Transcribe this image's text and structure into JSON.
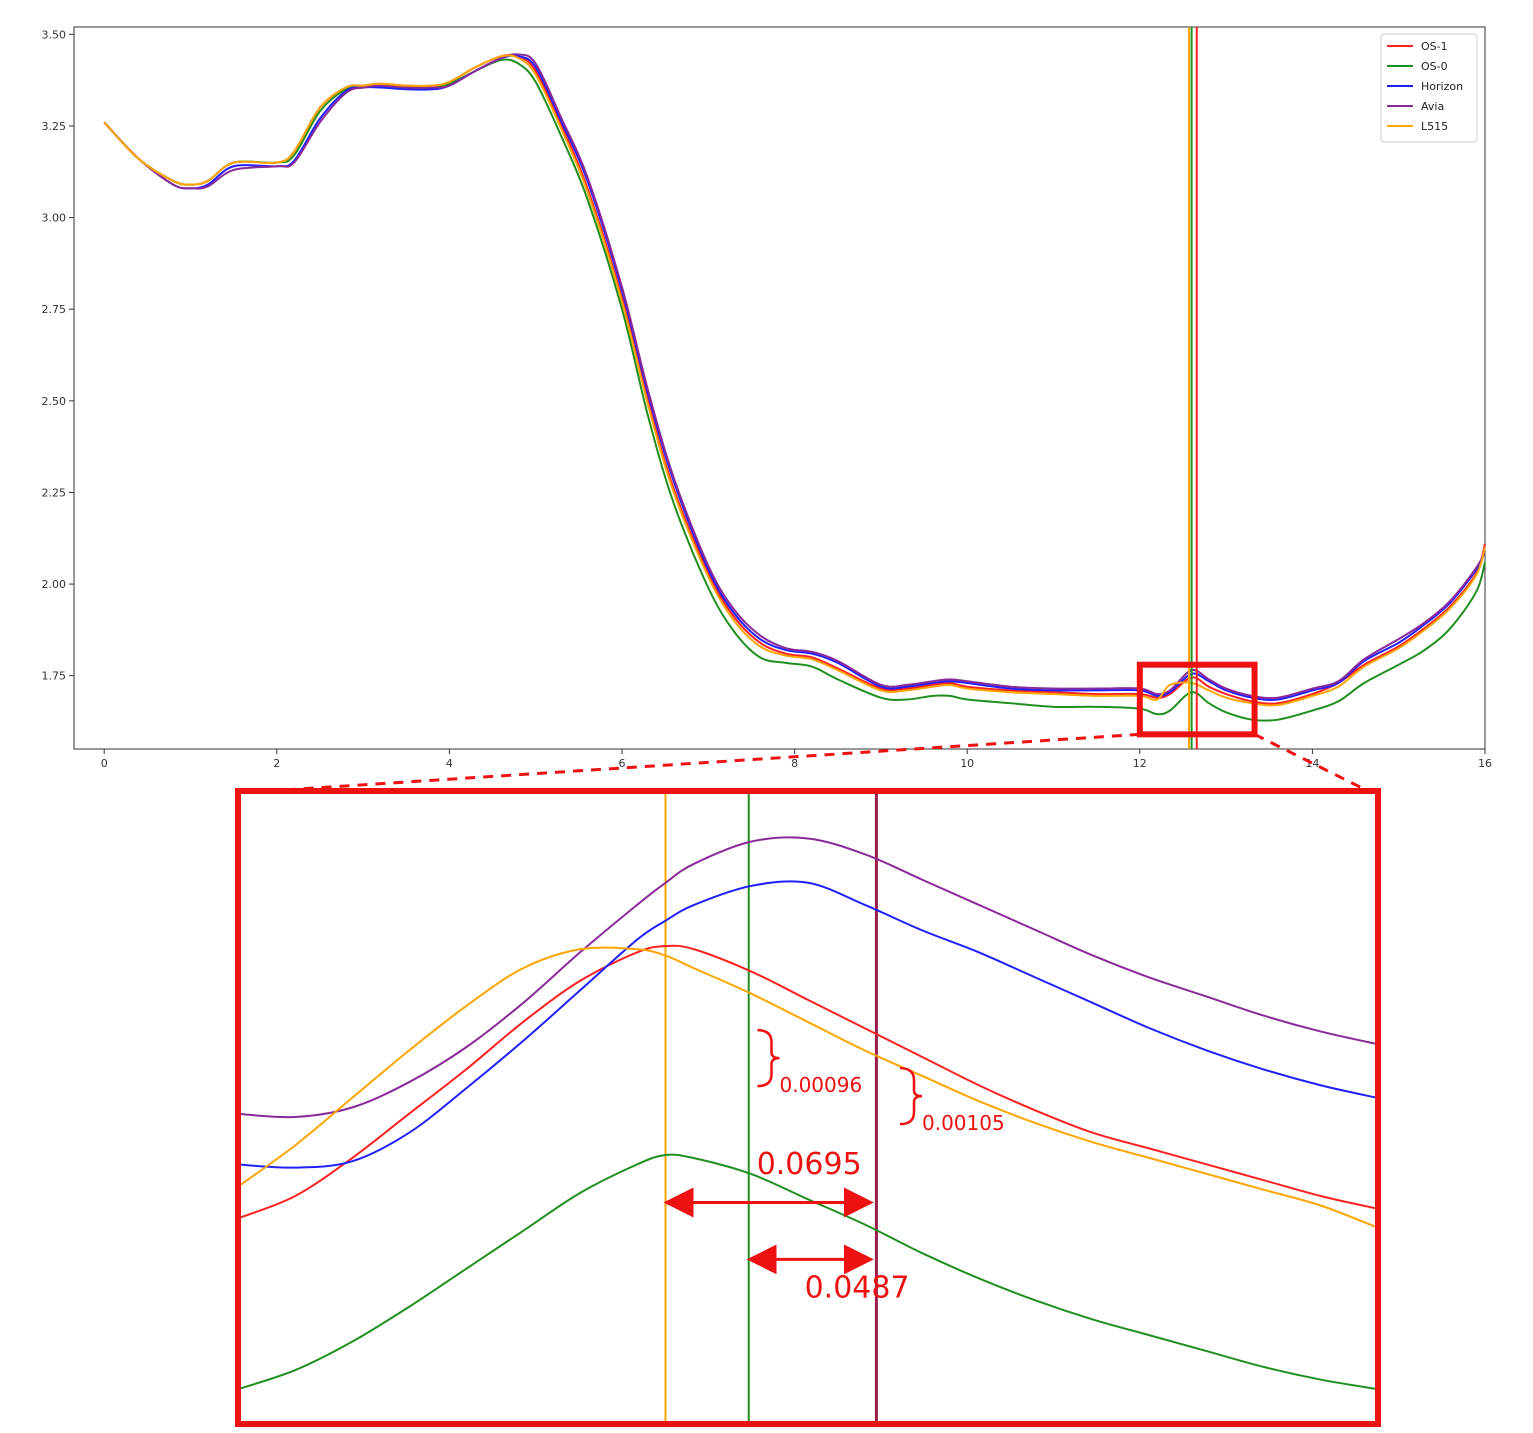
{
  "chart_data": [
    {
      "type": "line",
      "title": "",
      "xlabel": "",
      "ylabel": "",
      "xlim": [
        -0.35,
        16.0
      ],
      "ylim": [
        1.55,
        3.52
      ],
      "x_ticks": [
        "0",
        "2",
        "4",
        "6",
        "8",
        "10",
        "12",
        "14",
        "16"
      ],
      "y_ticks": [
        "1.75",
        "2.00",
        "2.25",
        "2.50",
        "2.75",
        "3.00",
        "3.25",
        "3.50"
      ],
      "grid": false,
      "legend_position": "top-right",
      "x": [
        0,
        0.4,
        0.8,
        1.0,
        1.2,
        1.5,
        2.0,
        2.2,
        2.5,
        2.8,
        3.0,
        3.2,
        3.5,
        3.8,
        4.0,
        4.3,
        4.6,
        4.8,
        5.0,
        5.3,
        5.6,
        6.0,
        6.3,
        6.6,
        7.0,
        7.3,
        7.6,
        7.9,
        8.2,
        8.5,
        9.0,
        9.3,
        9.6,
        9.8,
        10.0,
        10.5,
        11.0,
        11.5,
        12.0,
        12.2,
        12.35,
        12.6,
        12.8,
        13.0,
        13.3,
        13.6,
        14.0,
        14.3,
        14.6,
        15.0,
        15.3,
        15.6,
        15.9,
        16.0
      ],
      "series": [
        {
          "name": "OS-1",
          "color": "#ff2020",
          "values": [
            3.26,
            3.16,
            3.1,
            3.09,
            3.1,
            3.15,
            3.15,
            3.18,
            3.3,
            3.355,
            3.36,
            3.365,
            3.36,
            3.36,
            3.37,
            3.41,
            3.44,
            3.44,
            3.4,
            3.25,
            3.08,
            2.78,
            2.5,
            2.26,
            2.03,
            1.91,
            1.84,
            1.81,
            1.8,
            1.77,
            1.715,
            1.715,
            1.725,
            1.73,
            1.72,
            1.71,
            1.705,
            1.7,
            1.7,
            1.69,
            1.7,
            1.745,
            1.72,
            1.7,
            1.68,
            1.675,
            1.7,
            1.73,
            1.78,
            1.83,
            1.88,
            1.94,
            2.03,
            2.11
          ]
        },
        {
          "name": "OS-0",
          "color": "#1f8f1f",
          "values": [
            3.26,
            3.16,
            3.1,
            3.09,
            3.1,
            3.15,
            3.15,
            3.17,
            3.29,
            3.35,
            3.355,
            3.36,
            3.355,
            3.355,
            3.365,
            3.4,
            3.43,
            3.42,
            3.37,
            3.22,
            3.05,
            2.75,
            2.46,
            2.22,
            1.99,
            1.87,
            1.8,
            1.785,
            1.775,
            1.74,
            1.69,
            1.685,
            1.695,
            1.695,
            1.685,
            1.675,
            1.665,
            1.665,
            1.66,
            1.645,
            1.655,
            1.705,
            1.675,
            1.65,
            1.63,
            1.63,
            1.655,
            1.68,
            1.73,
            1.78,
            1.82,
            1.88,
            1.98,
            2.06
          ]
        },
        {
          "name": "Horizon",
          "color": "#2020ff",
          "values": [
            3.26,
            3.16,
            3.09,
            3.08,
            3.09,
            3.14,
            3.14,
            3.155,
            3.27,
            3.345,
            3.355,
            3.355,
            3.35,
            3.35,
            3.36,
            3.4,
            3.435,
            3.44,
            3.41,
            3.26,
            3.1,
            2.8,
            2.52,
            2.28,
            2.04,
            1.92,
            1.85,
            1.82,
            1.81,
            1.785,
            1.72,
            1.72,
            1.73,
            1.735,
            1.73,
            1.715,
            1.71,
            1.71,
            1.71,
            1.695,
            1.705,
            1.755,
            1.735,
            1.71,
            1.69,
            1.685,
            1.71,
            1.73,
            1.79,
            1.84,
            1.89,
            1.95,
            2.04,
            2.09
          ]
        },
        {
          "name": "Avia",
          "color": "#8a2a9a",
          "values": [
            3.26,
            3.16,
            3.09,
            3.08,
            3.085,
            3.13,
            3.14,
            3.15,
            3.26,
            3.34,
            3.355,
            3.36,
            3.355,
            3.355,
            3.36,
            3.4,
            3.435,
            3.445,
            3.42,
            3.27,
            3.11,
            2.81,
            2.53,
            2.29,
            2.05,
            1.93,
            1.86,
            1.825,
            1.815,
            1.79,
            1.725,
            1.725,
            1.735,
            1.74,
            1.735,
            1.72,
            1.715,
            1.715,
            1.715,
            1.7,
            1.71,
            1.765,
            1.74,
            1.715,
            1.695,
            1.69,
            1.715,
            1.735,
            1.795,
            1.85,
            1.895,
            1.955,
            2.045,
            2.09
          ]
        },
        {
          "name": "L515",
          "color": "#ffa500",
          "values": [
            3.26,
            3.16,
            3.1,
            3.09,
            3.1,
            3.15,
            3.15,
            3.18,
            3.3,
            3.355,
            3.36,
            3.365,
            3.36,
            3.36,
            3.37,
            3.41,
            3.44,
            3.435,
            3.39,
            3.24,
            3.07,
            2.77,
            2.49,
            2.25,
            2.02,
            1.9,
            1.83,
            1.805,
            1.795,
            1.765,
            1.71,
            1.71,
            1.72,
            1.725,
            1.715,
            1.705,
            1.7,
            1.695,
            1.695,
            1.685,
            1.725,
            1.73,
            1.71,
            1.69,
            1.675,
            1.67,
            1.695,
            1.72,
            1.775,
            1.825,
            1.875,
            1.935,
            2.025,
            2.1
          ]
        }
      ],
      "vertical_lines": [
        {
          "x": 12.57,
          "color": "#ffa500"
        },
        {
          "x": 12.6,
          "color": "#1f8f1f"
        },
        {
          "x": 12.66,
          "color": "#ff2020"
        }
      ],
      "zoom_box": {
        "x": [
          12.0,
          13.33
        ],
        "y": [
          1.59,
          1.78
        ]
      }
    },
    {
      "type": "line",
      "title": "",
      "zoom_view": true,
      "xlim": [
        0,
        1
      ],
      "ylim": [
        0,
        1
      ],
      "x": [
        0,
        0.05,
        0.1,
        0.15,
        0.2,
        0.25,
        0.3,
        0.35,
        0.375,
        0.4,
        0.45,
        0.5,
        0.55,
        0.6,
        0.65,
        0.7,
        0.75,
        0.8,
        0.85,
        0.9,
        0.95,
        1.0
      ],
      "series": [
        {
          "name": "OS-1",
          "color": "#ff2020",
          "values": [
            0.325,
            0.36,
            0.42,
            0.49,
            0.56,
            0.635,
            0.7,
            0.745,
            0.755,
            0.75,
            0.715,
            0.67,
            0.625,
            0.58,
            0.535,
            0.495,
            0.46,
            0.435,
            0.41,
            0.385,
            0.36,
            0.34
          ]
        },
        {
          "name": "OS-0",
          "color": "#1f8f1f",
          "values": [
            0.055,
            0.085,
            0.13,
            0.185,
            0.245,
            0.305,
            0.365,
            0.41,
            0.425,
            0.42,
            0.395,
            0.355,
            0.315,
            0.27,
            0.23,
            0.195,
            0.165,
            0.14,
            0.115,
            0.09,
            0.07,
            0.055
          ]
        },
        {
          "name": "Horizon",
          "color": "#2020ff",
          "values": [
            0.41,
            0.405,
            0.415,
            0.46,
            0.53,
            0.605,
            0.685,
            0.765,
            0.795,
            0.82,
            0.85,
            0.855,
            0.82,
            0.78,
            0.745,
            0.705,
            0.665,
            0.625,
            0.59,
            0.56,
            0.535,
            0.515
          ]
        },
        {
          "name": "Avia",
          "color": "#8a2a9a",
          "values": [
            0.49,
            0.485,
            0.5,
            0.54,
            0.595,
            0.665,
            0.745,
            0.82,
            0.855,
            0.885,
            0.92,
            0.925,
            0.9,
            0.86,
            0.82,
            0.78,
            0.74,
            0.705,
            0.675,
            0.645,
            0.62,
            0.6
          ]
        },
        {
          "name": "L515",
          "color": "#ffa500",
          "values": [
            0.375,
            0.44,
            0.515,
            0.59,
            0.66,
            0.72,
            0.75,
            0.75,
            0.74,
            0.72,
            0.68,
            0.635,
            0.59,
            0.55,
            0.51,
            0.475,
            0.445,
            0.42,
            0.395,
            0.37,
            0.345,
            0.31
          ]
        }
      ],
      "vertical_lines": [
        {
          "x": 0.375,
          "color": "#ffa500"
        },
        {
          "x": 0.448,
          "color": "#1f8f1f"
        },
        {
          "x": 0.56,
          "color": "#9b1b4b"
        }
      ],
      "annotations": [
        {
          "text": "0.00096",
          "x": 0.475,
          "y": 0.54,
          "kind": "brace"
        },
        {
          "text": "0.00105",
          "x": 0.6,
          "y": 0.48,
          "kind": "brace"
        },
        {
          "text": "0.0695",
          "x": 0.455,
          "y": 0.395,
          "kind": "arrow"
        },
        {
          "text": "0.0487",
          "x": 0.497,
          "y": 0.2,
          "kind": "arrow"
        }
      ]
    }
  ]
}
